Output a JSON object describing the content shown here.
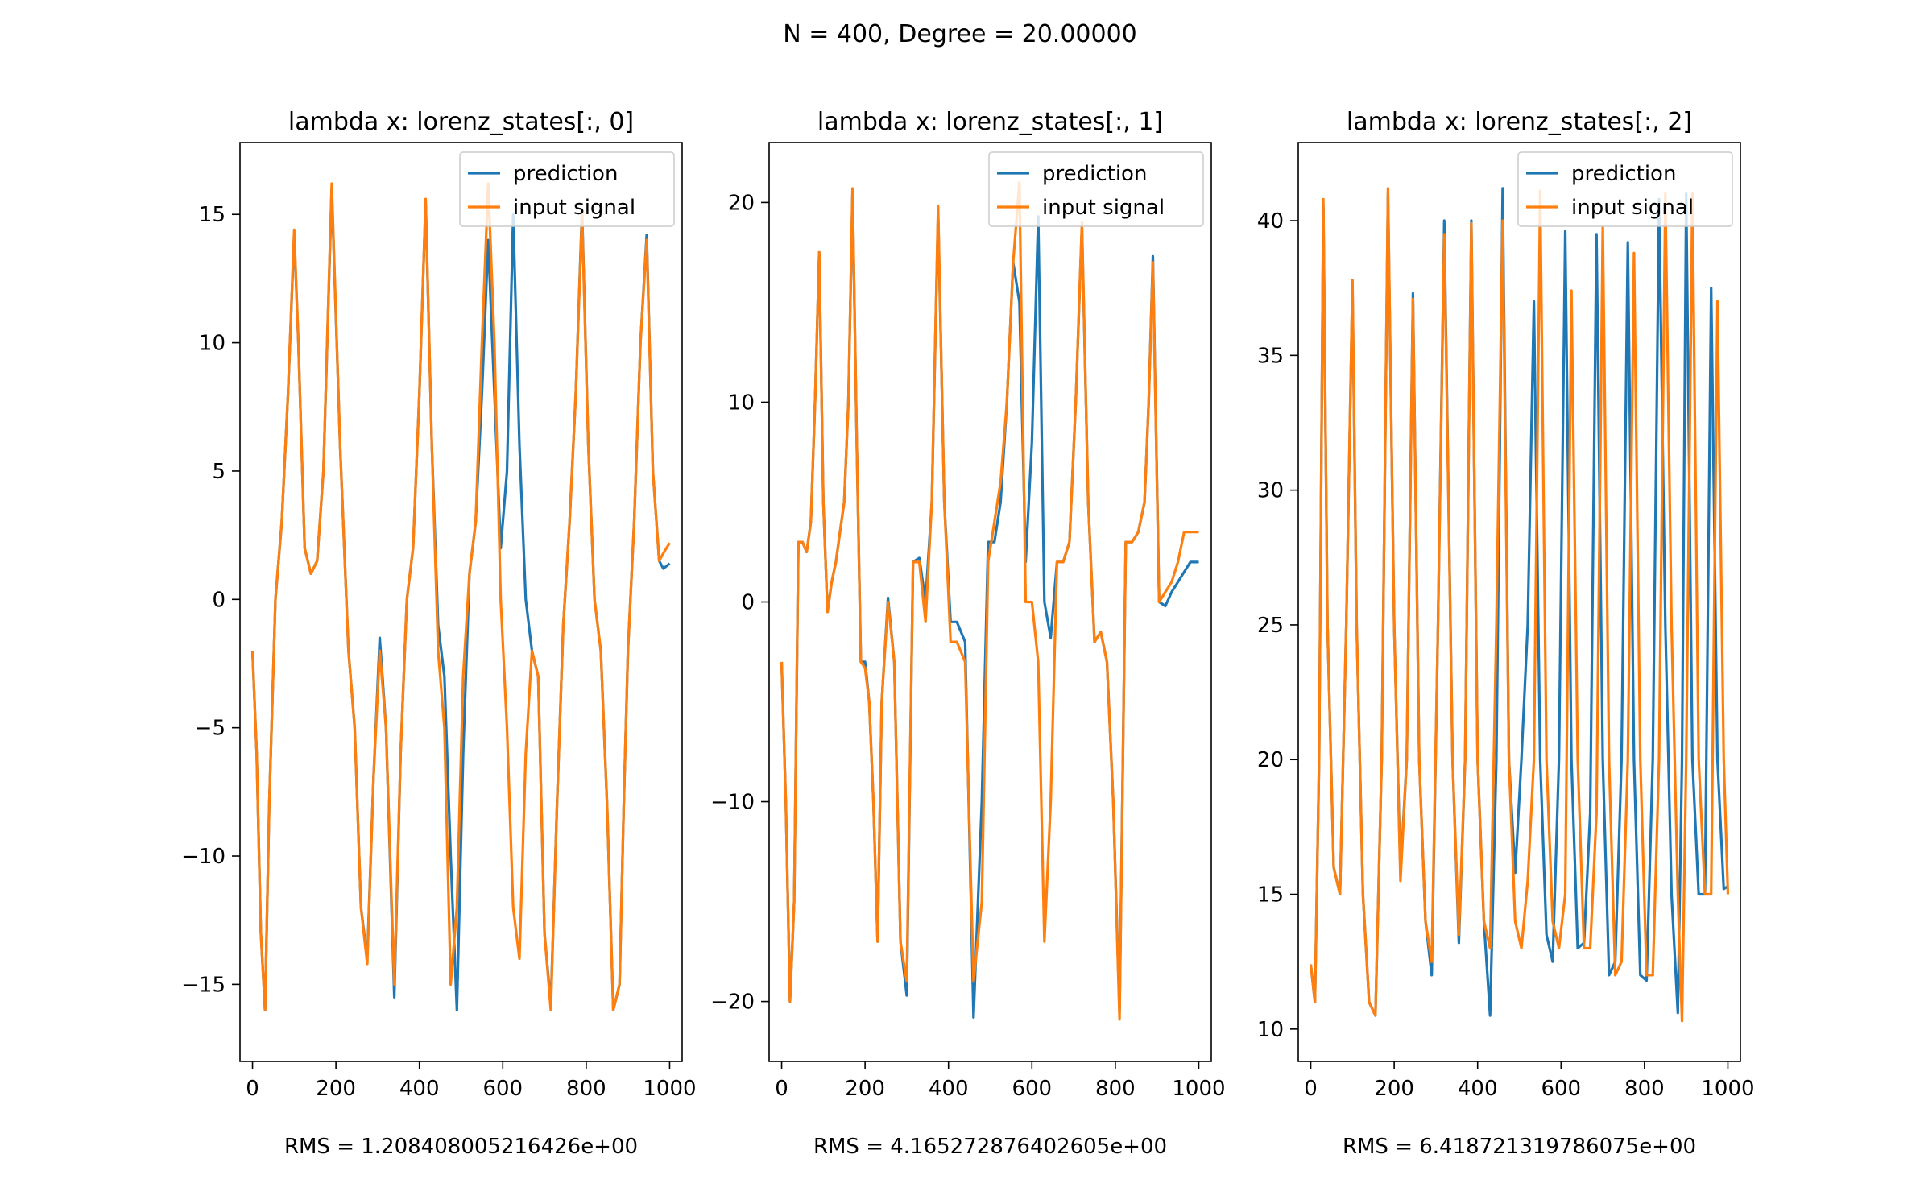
{
  "figure": {
    "suptitle": "N = 400, Degree = 20.00000"
  },
  "colors": {
    "prediction": "#1f77b4",
    "input_signal": "#ff7f0e",
    "axes": "#000000",
    "background": "#ffffff"
  },
  "chart_data": [
    {
      "type": "line",
      "title": "lambda x: lorenz_states[:, 0]",
      "xlabel": "RMS = 1.208408005216426e+00",
      "ylabel": "",
      "xlim": [
        -30,
        1030
      ],
      "ylim": [
        -18,
        17.8
      ],
      "grid": false,
      "legend": "top-right",
      "xticks": [
        0,
        200,
        400,
        600,
        800,
        1000
      ],
      "xtick_labels": [
        "0",
        "200",
        "400",
        "600",
        "800",
        "1000"
      ],
      "yticks": [
        15,
        10,
        5,
        0,
        -5,
        -10,
        -15
      ],
      "ytick_labels": [
        "15",
        "10",
        "5",
        "0",
        "−5",
        "−10",
        "−15"
      ],
      "series": [
        {
          "name": "input signal",
          "color": "#ff7f0e",
          "x": [
            0,
            10,
            20,
            30,
            40,
            55,
            70,
            85,
            100,
            110,
            125,
            140,
            155,
            170,
            190,
            210,
            230,
            245,
            260,
            275,
            290,
            305,
            320,
            340,
            355,
            370,
            385,
            400,
            415,
            430,
            445,
            460,
            475,
            490,
            505,
            520,
            535,
            550,
            565,
            580,
            595,
            610,
            625,
            640,
            655,
            670,
            685,
            700,
            715,
            730,
            745,
            760,
            775,
            790,
            805,
            820,
            835,
            850,
            865,
            880,
            890,
            900,
            915,
            930,
            945,
            960,
            975,
            985,
            1000
          ],
          "y": [
            -2,
            -6,
            -13,
            -16,
            -8,
            0,
            3,
            8,
            14.4,
            10,
            2,
            1,
            1.5,
            5,
            16.2,
            6,
            -2,
            -5,
            -12,
            -14.2,
            -7,
            -2,
            -5,
            -15,
            -6,
            0,
            2,
            8,
            15.6,
            6,
            -2,
            -5,
            -15,
            -12,
            -3,
            1,
            3,
            10,
            16.2,
            10,
            0,
            -5,
            -12,
            -14,
            -6,
            -2,
            -3,
            -13,
            -16,
            -8,
            -1,
            3,
            8,
            15,
            6,
            0,
            -2,
            -8,
            -16,
            -15,
            -8,
            -2,
            3,
            10,
            14,
            5,
            1.5,
            1.8,
            2.2
          ]
        },
        {
          "name": "prediction",
          "color": "#1f77b4",
          "x": [
            0,
            10,
            20,
            30,
            40,
            55,
            70,
            85,
            100,
            110,
            125,
            140,
            155,
            170,
            190,
            210,
            230,
            245,
            260,
            275,
            290,
            305,
            320,
            340,
            355,
            370,
            385,
            400,
            415,
            430,
            445,
            460,
            475,
            490,
            505,
            520,
            535,
            550,
            565,
            580,
            595,
            610,
            625,
            640,
            655,
            670,
            685,
            700,
            715,
            730,
            745,
            760,
            775,
            790,
            805,
            820,
            835,
            850,
            865,
            880,
            890,
            900,
            915,
            930,
            945,
            960,
            975,
            985,
            1000
          ],
          "y": [
            -2,
            -6,
            -13,
            -16,
            -8,
            0,
            3,
            8,
            14.2,
            10,
            2,
            1,
            1.5,
            5,
            16,
            6,
            -2,
            -5,
            -12,
            -14,
            -7,
            -1.5,
            -5,
            -15.5,
            -6,
            0,
            2,
            8,
            15.5,
            6,
            -1,
            -3,
            -10,
            -16,
            -6,
            1,
            3,
            8,
            14,
            8,
            2,
            5,
            15,
            6,
            0,
            -2,
            -3,
            -13,
            -15.8,
            -8,
            -1,
            3,
            8,
            15.2,
            6,
            0,
            -2,
            -8,
            -16,
            -15,
            -8,
            -2,
            3,
            10,
            14.2,
            5,
            1.5,
            1.2,
            1.4
          ]
        }
      ]
    },
    {
      "type": "line",
      "title": "lambda x: lorenz_states[:, 1]",
      "xlabel": "RMS = 4.165272876402605e+00",
      "ylabel": "",
      "xlim": [
        -30,
        1030
      ],
      "ylim": [
        -23,
        23
      ],
      "grid": false,
      "legend": "top-right",
      "xticks": [
        0,
        200,
        400,
        600,
        800,
        1000
      ],
      "xtick_labels": [
        "0",
        "200",
        "400",
        "600",
        "800",
        "1000"
      ],
      "yticks": [
        20,
        10,
        0,
        -10,
        -20
      ],
      "ytick_labels": [
        "20",
        "10",
        "0",
        "−10",
        "−20"
      ],
      "series": [
        {
          "name": "input signal",
          "color": "#ff7f0e",
          "x": [
            0,
            10,
            20,
            30,
            40,
            50,
            60,
            70,
            80,
            90,
            100,
            110,
            120,
            130,
            140,
            150,
            160,
            170,
            180,
            190,
            200,
            210,
            220,
            230,
            240,
            255,
            270,
            285,
            300,
            315,
            330,
            345,
            360,
            375,
            390,
            405,
            420,
            440,
            460,
            480,
            495,
            510,
            525,
            540,
            555,
            570,
            585,
            600,
            615,
            630,
            645,
            660,
            675,
            690,
            705,
            720,
            735,
            750,
            765,
            780,
            795,
            810,
            825,
            840,
            855,
            870,
            880,
            890,
            905,
            920,
            935,
            950,
            965,
            980,
            1000
          ],
          "y": [
            -3,
            -10,
            -20,
            -15,
            3,
            3,
            2.5,
            4,
            10,
            17.5,
            5,
            -0.5,
            1,
            2,
            3.5,
            5,
            10,
            20.7,
            8,
            -3,
            -3.3,
            -5,
            -10,
            -17,
            -5,
            0,
            -3,
            -17,
            -19,
            2,
            2,
            -1,
            5,
            19.8,
            5,
            -2,
            -2,
            -3,
            -19,
            -15,
            2,
            4,
            6,
            10,
            17,
            21,
            0,
            0,
            -3,
            -17,
            -10,
            2,
            2,
            3,
            10,
            19,
            5,
            -2,
            -1.5,
            -3,
            -10,
            -20.9,
            3,
            3,
            3.5,
            5,
            10,
            17,
            0,
            0.5,
            1,
            2,
            3.5,
            3.5,
            3.5
          ]
        },
        {
          "name": "prediction",
          "color": "#1f77b4",
          "x": [
            0,
            10,
            20,
            30,
            40,
            50,
            60,
            70,
            80,
            90,
            100,
            110,
            120,
            130,
            140,
            150,
            160,
            170,
            180,
            190,
            200,
            210,
            220,
            230,
            240,
            255,
            270,
            285,
            300,
            315,
            330,
            345,
            360,
            375,
            390,
            405,
            420,
            440,
            460,
            480,
            495,
            510,
            525,
            540,
            555,
            570,
            585,
            600,
            615,
            630,
            645,
            660,
            675,
            690,
            705,
            720,
            735,
            750,
            765,
            780,
            795,
            810,
            825,
            840,
            855,
            870,
            880,
            890,
            905,
            920,
            935,
            950,
            965,
            980,
            1000
          ],
          "y": [
            -3,
            -10,
            -20,
            -15,
            3,
            3,
            2.5,
            4,
            10,
            17.5,
            5,
            -0.5,
            1,
            2,
            3.5,
            5,
            10,
            20.5,
            8,
            -3,
            -3,
            -5,
            -10,
            -17,
            -5,
            0.2,
            -3,
            -17,
            -19.7,
            2,
            2.2,
            0,
            5,
            19.5,
            5,
            -1,
            -1,
            -2,
            -20.8,
            -10,
            3,
            3,
            5,
            10,
            17,
            15,
            2,
            8,
            19.3,
            0,
            -1.8,
            2,
            2,
            3,
            10,
            18.8,
            5,
            -2,
            -1.5,
            -3,
            -10,
            -20.5,
            3,
            3,
            3.5,
            5,
            10,
            17.3,
            0,
            -0.2,
            0.5,
            1,
            1.5,
            2,
            2
          ]
        }
      ]
    },
    {
      "type": "line",
      "title": "lambda x: lorenz_states[:, 2]",
      "xlabel": "RMS = 6.418721319786075e+00",
      "ylabel": "",
      "xlim": [
        -30,
        1030
      ],
      "ylim": [
        8.8,
        42.9
      ],
      "grid": false,
      "legend": "top-right",
      "xticks": [
        0,
        200,
        400,
        600,
        800,
        1000
      ],
      "xtick_labels": [
        "0",
        "200",
        "400",
        "600",
        "800",
        "1000"
      ],
      "yticks": [
        40,
        35,
        30,
        25,
        20,
        15,
        10
      ],
      "ytick_labels": [
        "40",
        "35",
        "30",
        "25",
        "20",
        "15",
        "10"
      ],
      "series": [
        {
          "name": "input signal",
          "color": "#ff7f0e",
          "x": [
            0,
            10,
            20,
            30,
            40,
            55,
            70,
            85,
            100,
            110,
            125,
            140,
            155,
            170,
            185,
            200,
            215,
            230,
            245,
            260,
            275,
            290,
            305,
            320,
            340,
            355,
            370,
            385,
            400,
            415,
            430,
            445,
            460,
            475,
            490,
            505,
            520,
            535,
            550,
            565,
            580,
            595,
            610,
            625,
            640,
            655,
            670,
            685,
            700,
            715,
            730,
            745,
            760,
            775,
            790,
            805,
            820,
            835,
            850,
            865,
            880,
            890,
            900,
            915,
            930,
            945,
            960,
            975,
            990,
            1000
          ],
          "y": [
            12.4,
            11,
            20,
            40.8,
            25,
            16,
            15,
            25,
            37.8,
            25,
            15,
            11,
            10.5,
            20,
            41.2,
            25,
            15.5,
            20,
            37.1,
            20,
            14,
            12.5,
            25,
            39.5,
            20,
            13.5,
            20,
            39.9,
            20,
            14,
            13,
            25,
            40,
            20,
            14,
            13,
            15.5,
            20,
            41.1,
            20,
            14,
            13,
            15,
            37.4,
            20,
            13,
            13,
            18,
            39.8,
            20,
            12,
            12.5,
            20,
            38.8,
            20,
            12,
            12,
            20,
            41,
            25,
            15,
            10.3,
            20,
            41,
            20,
            15,
            15,
            37,
            20,
            15
          ]
        },
        {
          "name": "prediction",
          "color": "#1f77b4",
          "x": [
            0,
            10,
            20,
            30,
            40,
            55,
            70,
            85,
            100,
            110,
            125,
            140,
            155,
            170,
            185,
            200,
            215,
            230,
            245,
            260,
            275,
            290,
            305,
            320,
            340,
            355,
            370,
            385,
            400,
            415,
            430,
            445,
            460,
            475,
            490,
            505,
            520,
            535,
            550,
            565,
            580,
            595,
            610,
            625,
            640,
            655,
            670,
            685,
            700,
            715,
            730,
            745,
            760,
            775,
            790,
            805,
            820,
            835,
            850,
            865,
            880,
            890,
            900,
            915,
            930,
            945,
            960,
            975,
            990,
            1000
          ],
          "y": [
            12.4,
            11,
            20,
            40.6,
            25,
            16,
            15,
            25,
            37.6,
            25,
            15,
            11,
            10.5,
            20,
            41,
            25,
            15.8,
            20,
            37.3,
            20,
            14,
            12,
            25,
            40,
            20,
            13.2,
            20,
            40,
            20,
            14,
            10.5,
            20,
            41.2,
            20,
            15.8,
            20,
            25,
            37,
            20,
            13.5,
            12.5,
            20,
            39.6,
            20,
            13,
            13.2,
            18,
            39.5,
            20,
            12,
            12.5,
            20,
            39.2,
            20,
            12,
            11.8,
            20,
            40.8,
            25,
            15,
            10.6,
            20,
            41,
            20,
            15,
            15,
            37.5,
            20,
            15.2,
            15.3
          ]
        }
      ]
    }
  ]
}
